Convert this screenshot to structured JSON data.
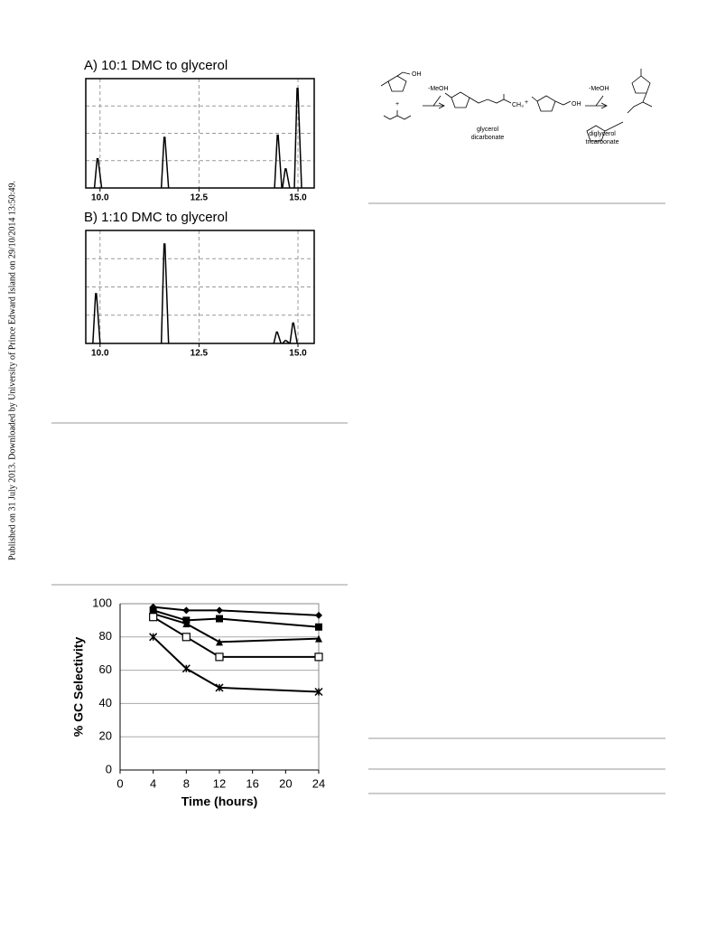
{
  "side_note": "Published on 31 July 2013. Downloaded by University of Prince Edward Island on 29/10/2014 13:50:49.",
  "scheme": {
    "oh_1": "OH",
    "plus_1": "+",
    "step_1": "-MeOH",
    "methyl": "CH₃",
    "product_1": [
      "glycerol",
      "dicarbonate"
    ],
    "plus_2": "+",
    "oh_2": "OH",
    "step_2": "-MeOH",
    "product_2": [
      "diglycerol",
      "tricarbonate"
    ]
  },
  "chart_data": [
    {
      "type": "peaks",
      "title": "A) 10:1 DMC to glycerol",
      "color": "#000000",
      "x": [
        9.95,
        11.64,
        14.5,
        14.7,
        15.0
      ],
      "values": [
        1.07,
        1.85,
        1.93,
        0.7,
        3.64
      ],
      "xlim": [
        9.64,
        15.41
      ],
      "xticks": [
        {
          "value": 10,
          "label": "10.0"
        },
        12.5,
        {
          "value": 15,
          "label": "15.0"
        }
      ],
      "ylim": [
        0,
        4
      ],
      "yticks": [
        1,
        2,
        3
      ],
      "ytick_labels": false,
      "grid": true
    },
    {
      "type": "peaks",
      "title": "B) 1:10 DMC to glycerol",
      "color": "#000000",
      "x": [
        9.91,
        11.64,
        14.48,
        14.7,
        14.89
      ],
      "values": [
        1.76,
        3.52,
        0.4,
        0.1,
        0.72
      ],
      "xlim": [
        9.64,
        15.41
      ],
      "xticks": [
        {
          "value": 10,
          "label": "10.0"
        },
        12.5,
        {
          "value": 15,
          "label": "15.0"
        }
      ],
      "ylim": [
        0,
        4
      ],
      "yticks": [
        1,
        2,
        3
      ],
      "ytick_labels": false,
      "grid": true
    },
    {
      "type": "line",
      "x_label": "Time (hours)",
      "y_label": "% GC Selectivity",
      "x": [
        4,
        8,
        12,
        24
      ],
      "xlim": [
        0,
        24
      ],
      "xticks": [
        0,
        4,
        8,
        12,
        16,
        20,
        24
      ],
      "ylim": [
        0,
        100
      ],
      "yticks": [
        0,
        20,
        40,
        60,
        80,
        100
      ],
      "ytick_labels": true,
      "grid": true,
      "series": [
        {
          "color": "#000000",
          "marker": "diamond",
          "values": [
            98,
            96,
            96,
            93
          ]
        },
        {
          "color": "#000000",
          "marker": "square",
          "values": [
            96,
            90,
            91,
            86
          ]
        },
        {
          "color": "#000000",
          "marker": "triangle",
          "values": [
            94,
            88,
            77,
            79
          ]
        },
        {
          "color": "#000000",
          "marker": "open-square",
          "values": [
            92,
            80,
            68,
            68
          ]
        },
        {
          "color": "#000000",
          "marker": "star",
          "values": [
            80,
            61,
            49.5,
            47
          ]
        }
      ]
    }
  ]
}
